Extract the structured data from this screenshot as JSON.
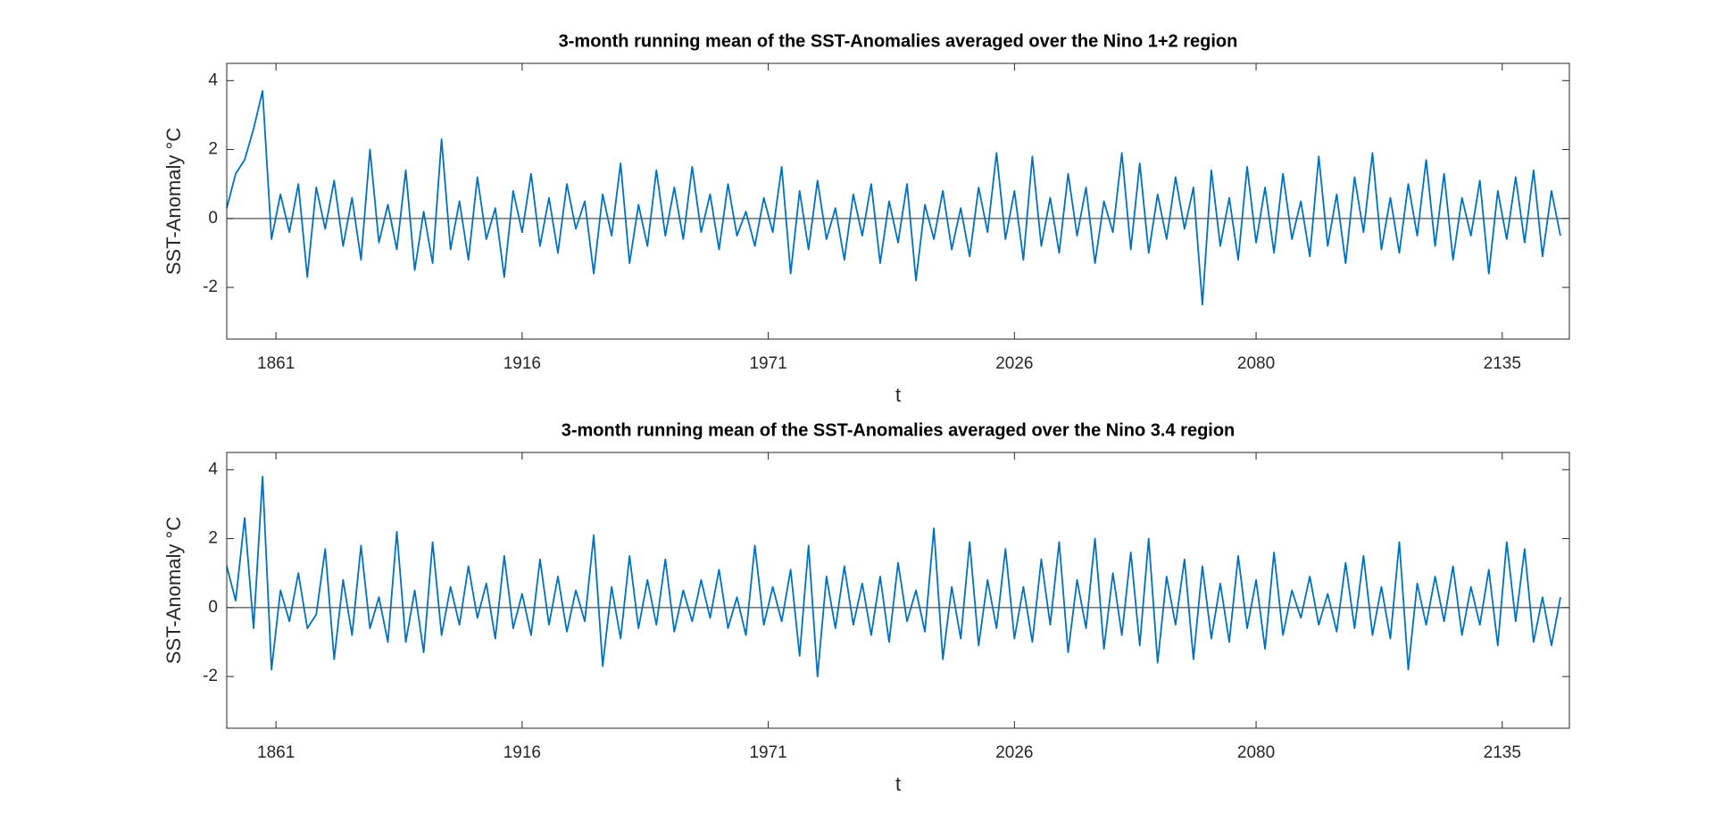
{
  "chart_data": [
    {
      "type": "line",
      "title": "3-month running mean of the SST-Anomalies averaged over the Nino 1+2 region",
      "xlabel": "t",
      "ylabel": "SST-Anomaly °C",
      "color": "#0072BD",
      "zero_line": true,
      "xlim": [
        1850,
        2150
      ],
      "xticks": [
        1861,
        1916,
        1971,
        2026,
        2080,
        2135
      ],
      "ylim": [
        -3.5,
        4.5
      ],
      "yticks": [
        -2,
        0,
        2,
        4
      ],
      "x": [
        1850,
        1852,
        1854,
        1856,
        1858,
        1860,
        1862,
        1864,
        1866,
        1868,
        1870,
        1872,
        1874,
        1876,
        1878,
        1880,
        1882,
        1884,
        1886,
        1888,
        1890,
        1892,
        1894,
        1896,
        1898,
        1900,
        1902,
        1904,
        1906,
        1908,
        1910,
        1912,
        1914,
        1916,
        1918,
        1920,
        1922,
        1924,
        1926,
        1928,
        1930,
        1932,
        1934,
        1936,
        1938,
        1940,
        1942,
        1944,
        1946,
        1948,
        1950,
        1952,
        1954,
        1956,
        1958,
        1960,
        1962,
        1964,
        1966,
        1968,
        1970,
        1972,
        1974,
        1976,
        1978,
        1980,
        1982,
        1984,
        1986,
        1988,
        1990,
        1992,
        1994,
        1996,
        1998,
        2000,
        2002,
        2004,
        2006,
        2008,
        2010,
        2012,
        2014,
        2016,
        2018,
        2020,
        2022,
        2024,
        2026,
        2028,
        2030,
        2032,
        2034,
        2036,
        2038,
        2040,
        2042,
        2044,
        2046,
        2048,
        2050,
        2052,
        2054,
        2056,
        2058,
        2060,
        2062,
        2064,
        2066,
        2068,
        2070,
        2072,
        2074,
        2076,
        2078,
        2080,
        2082,
        2084,
        2086,
        2088,
        2090,
        2092,
        2094,
        2096,
        2098,
        2100,
        2102,
        2104,
        2106,
        2108,
        2110,
        2112,
        2114,
        2116,
        2118,
        2120,
        2122,
        2124,
        2126,
        2128,
        2130,
        2132,
        2134,
        2136,
        2138,
        2140,
        2142,
        2144,
        2146,
        2148
      ],
      "values": [
        0.3,
        1.3,
        1.7,
        2.6,
        3.7,
        -0.6,
        0.7,
        -0.4,
        1.0,
        -1.7,
        0.9,
        -0.3,
        1.1,
        -0.8,
        0.6,
        -1.2,
        2.0,
        -0.7,
        0.4,
        -0.9,
        1.4,
        -1.5,
        0.2,
        -1.3,
        2.3,
        -0.9,
        0.5,
        -1.2,
        1.2,
        -0.6,
        0.3,
        -1.7,
        0.8,
        -0.4,
        1.3,
        -0.8,
        0.6,
        -1.0,
        1.0,
        -0.3,
        0.5,
        -1.6,
        0.7,
        -0.5,
        1.6,
        -1.3,
        0.4,
        -0.8,
        1.4,
        -0.5,
        0.9,
        -0.6,
        1.5,
        -0.4,
        0.7,
        -0.9,
        1.0,
        -0.5,
        0.2,
        -0.8,
        0.6,
        -0.4,
        1.5,
        -1.6,
        0.8,
        -0.9,
        1.1,
        -0.6,
        0.3,
        -1.2,
        0.7,
        -0.5,
        1.0,
        -1.3,
        0.5,
        -0.7,
        1.0,
        -1.8,
        0.4,
        -0.6,
        0.8,
        -0.9,
        0.3,
        -1.1,
        0.9,
        -0.4,
        1.9,
        -0.6,
        0.8,
        -1.2,
        1.8,
        -0.8,
        0.6,
        -1.0,
        1.3,
        -0.5,
        0.9,
        -1.3,
        0.5,
        -0.4,
        1.9,
        -0.9,
        1.6,
        -1.0,
        0.7,
        -0.6,
        1.2,
        -0.3,
        0.9,
        -2.5,
        1.4,
        -0.8,
        0.6,
        -1.2,
        1.5,
        -0.7,
        0.9,
        -1.0,
        1.3,
        -0.6,
        0.5,
        -1.1,
        1.8,
        -0.8,
        0.7,
        -1.3,
        1.2,
        -0.4,
        1.9,
        -0.9,
        0.6,
        -1.0,
        1.0,
        -0.5,
        1.7,
        -0.8,
        1.3,
        -1.2,
        0.6,
        -0.5,
        1.1,
        -1.6,
        0.8,
        -0.6,
        1.2,
        -0.7,
        1.4,
        -1.1,
        0.8,
        -0.5
      ]
    },
    {
      "type": "line",
      "title": "3-month running mean of the SST-Anomalies averaged over the Nino 3.4 region",
      "xlabel": "t",
      "ylabel": "SST-Anomaly °C",
      "color": "#0072BD",
      "zero_line": true,
      "xlim": [
        1850,
        2150
      ],
      "xticks": [
        1861,
        1916,
        1971,
        2026,
        2080,
        2135
      ],
      "ylim": [
        -3.5,
        4.5
      ],
      "yticks": [
        -2,
        0,
        2,
        4
      ],
      "x": [
        1850,
        1852,
        1854,
        1856,
        1858,
        1860,
        1862,
        1864,
        1866,
        1868,
        1870,
        1872,
        1874,
        1876,
        1878,
        1880,
        1882,
        1884,
        1886,
        1888,
        1890,
        1892,
        1894,
        1896,
        1898,
        1900,
        1902,
        1904,
        1906,
        1908,
        1910,
        1912,
        1914,
        1916,
        1918,
        1920,
        1922,
        1924,
        1926,
        1928,
        1930,
        1932,
        1934,
        1936,
        1938,
        1940,
        1942,
        1944,
        1946,
        1948,
        1950,
        1952,
        1954,
        1956,
        1958,
        1960,
        1962,
        1964,
        1966,
        1968,
        1970,
        1972,
        1974,
        1976,
        1978,
        1980,
        1982,
        1984,
        1986,
        1988,
        1990,
        1992,
        1994,
        1996,
        1998,
        2000,
        2002,
        2004,
        2006,
        2008,
        2010,
        2012,
        2014,
        2016,
        2018,
        2020,
        2022,
        2024,
        2026,
        2028,
        2030,
        2032,
        2034,
        2036,
        2038,
        2040,
        2042,
        2044,
        2046,
        2048,
        2050,
        2052,
        2054,
        2056,
        2058,
        2060,
        2062,
        2064,
        2066,
        2068,
        2070,
        2072,
        2074,
        2076,
        2078,
        2080,
        2082,
        2084,
        2086,
        2088,
        2090,
        2092,
        2094,
        2096,
        2098,
        2100,
        2102,
        2104,
        2106,
        2108,
        2110,
        2112,
        2114,
        2116,
        2118,
        2120,
        2122,
        2124,
        2126,
        2128,
        2130,
        2132,
        2134,
        2136,
        2138,
        2140,
        2142,
        2144,
        2146,
        2148
      ],
      "values": [
        1.2,
        0.2,
        2.6,
        -0.6,
        3.8,
        -1.8,
        0.5,
        -0.4,
        1.0,
        -0.6,
        -0.2,
        1.7,
        -1.5,
        0.8,
        -0.8,
        1.8,
        -0.6,
        0.3,
        -1.0,
        2.2,
        -1.0,
        0.5,
        -1.3,
        1.9,
        -0.8,
        0.6,
        -0.5,
        1.2,
        -0.3,
        0.7,
        -0.9,
        1.5,
        -0.6,
        0.4,
        -0.8,
        1.4,
        -0.5,
        0.9,
        -0.7,
        0.5,
        -0.4,
        2.1,
        -1.7,
        0.6,
        -0.9,
        1.5,
        -0.6,
        0.8,
        -0.5,
        1.4,
        -0.7,
        0.5,
        -0.4,
        0.8,
        -0.3,
        1.1,
        -0.6,
        0.3,
        -0.8,
        1.8,
        -0.5,
        0.6,
        -0.4,
        1.1,
        -1.4,
        1.8,
        -2.0,
        0.9,
        -0.6,
        1.2,
        -0.5,
        0.7,
        -0.8,
        0.9,
        -1.0,
        1.3,
        -0.4,
        0.5,
        -0.7,
        2.3,
        -1.5,
        0.6,
        -0.9,
        1.9,
        -1.1,
        0.8,
        -0.6,
        1.7,
        -0.9,
        0.6,
        -1.0,
        1.4,
        -0.5,
        1.9,
        -1.3,
        0.8,
        -0.6,
        2.0,
        -1.2,
        1.0,
        -0.8,
        1.6,
        -1.1,
        2.0,
        -1.6,
        0.9,
        -0.5,
        1.4,
        -1.5,
        1.2,
        -0.9,
        0.7,
        -1.0,
        1.5,
        -0.6,
        0.8,
        -1.2,
        1.6,
        -0.8,
        0.5,
        -0.3,
        0.9,
        -0.5,
        0.4,
        -0.7,
        1.3,
        -0.6,
        1.5,
        -0.8,
        0.6,
        -0.9,
        1.9,
        -1.8,
        0.7,
        -0.5,
        0.9,
        -0.4,
        1.2,
        -0.8,
        0.6,
        -0.5,
        1.1,
        -1.1,
        1.9,
        -0.4,
        1.7,
        -1.0,
        0.3,
        -1.1,
        0.3
      ]
    }
  ]
}
